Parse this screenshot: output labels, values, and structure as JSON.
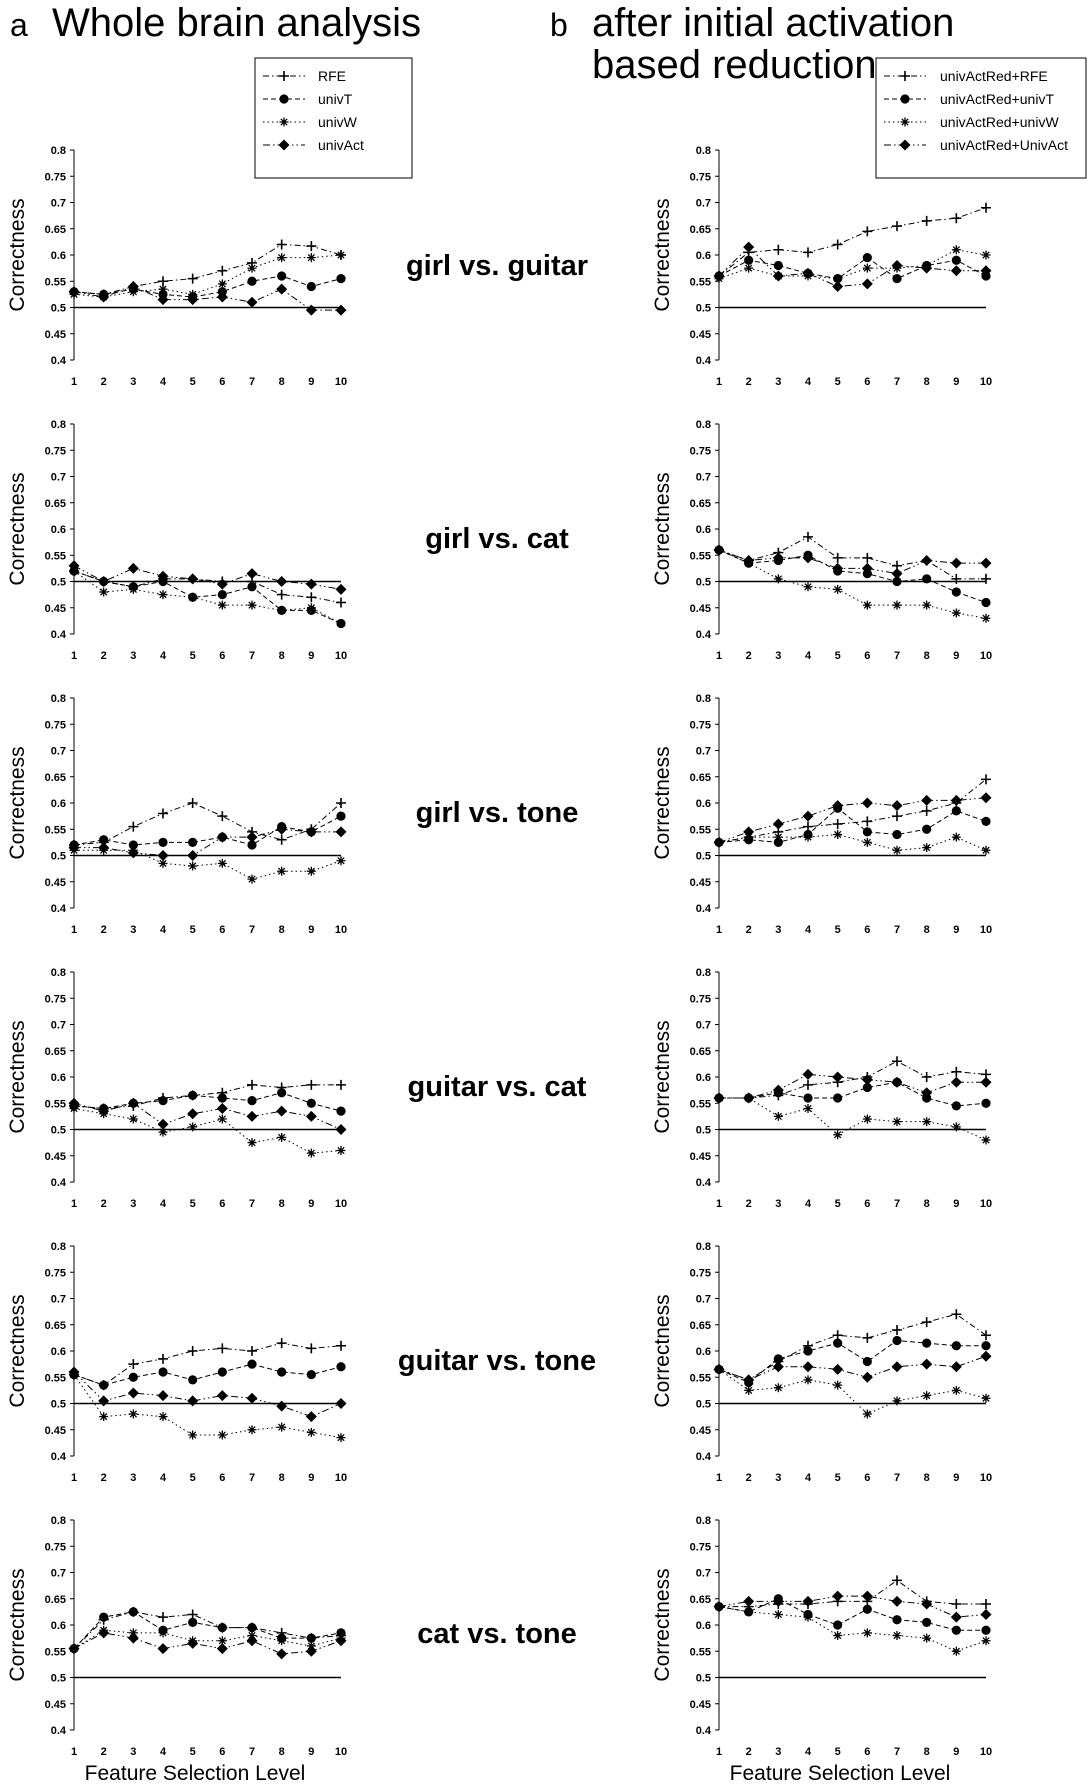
{
  "panels": {
    "a": {
      "letter": "a",
      "title": "Whole brain analysis"
    },
    "b": {
      "letter": "b",
      "title_line1": "after initial activation",
      "title_line2": "based reduction"
    }
  },
  "legend_a": [
    "RFE",
    "univT",
    "univW",
    "univAct"
  ],
  "legend_b": [
    "univActRed+RFE",
    "univActRed+univT",
    "univActRed+univW",
    "univActRed+UnivAct"
  ],
  "comparisons": [
    "girl vs. guitar",
    "girl vs. cat",
    "girl vs. tone",
    "guitar vs. cat",
    "guitar vs. tone",
    "cat vs. tone"
  ],
  "ylabel": "Correctness",
  "xlabel": "Feature Selection Level",
  "yticks": [
    "0.4",
    "0.45",
    "0.5",
    "0.55",
    "0.6",
    "0.65",
    "0.7",
    "0.75",
    "0.8"
  ],
  "xticks": [
    "1",
    "2",
    "3",
    "4",
    "5",
    "6",
    "7",
    "8",
    "9",
    "10"
  ],
  "chart_data": [
    {
      "type": "line",
      "panel": "a",
      "title": "girl vs. guitar",
      "ylim": [
        0.4,
        0.8
      ],
      "baseline": 0.5,
      "x": [
        1,
        2,
        3,
        4,
        5,
        6,
        7,
        8,
        9,
        10
      ],
      "series": [
        {
          "name": "RFE",
          "marker": "plus",
          "values": [
            0.53,
            0.525,
            0.54,
            0.55,
            0.555,
            0.57,
            0.585,
            0.62,
            0.617,
            0.6
          ]
        },
        {
          "name": "univT",
          "marker": "circle",
          "values": [
            0.53,
            0.525,
            0.535,
            0.525,
            0.52,
            0.53,
            0.55,
            0.56,
            0.54,
            0.555
          ]
        },
        {
          "name": "univW",
          "marker": "star",
          "values": [
            0.525,
            0.52,
            0.53,
            0.535,
            0.525,
            0.545,
            0.575,
            0.595,
            0.595,
            0.6
          ]
        },
        {
          "name": "univAct",
          "marker": "diamond",
          "values": [
            0.53,
            0.52,
            0.54,
            0.515,
            0.515,
            0.52,
            0.51,
            0.535,
            0.495,
            0.495
          ]
        }
      ]
    },
    {
      "type": "line",
      "panel": "b",
      "title": "girl vs. guitar",
      "ylim": [
        0.4,
        0.8
      ],
      "baseline": 0.5,
      "x": [
        1,
        2,
        3,
        4,
        5,
        6,
        7,
        8,
        9,
        10
      ],
      "series": [
        {
          "name": "univActRed+RFE",
          "marker": "plus",
          "values": [
            0.56,
            0.605,
            0.61,
            0.605,
            0.62,
            0.645,
            0.655,
            0.665,
            0.67,
            0.69
          ]
        },
        {
          "name": "univActRed+univT",
          "marker": "circle",
          "values": [
            0.56,
            0.59,
            0.58,
            0.565,
            0.555,
            0.595,
            0.555,
            0.58,
            0.59,
            0.56
          ]
        },
        {
          "name": "univActRed+univW",
          "marker": "star",
          "values": [
            0.555,
            0.575,
            0.56,
            0.56,
            0.555,
            0.575,
            0.575,
            0.58,
            0.61,
            0.6
          ]
        },
        {
          "name": "univActRed+UnivAct",
          "marker": "diamond",
          "values": [
            0.56,
            0.615,
            0.56,
            0.565,
            0.54,
            0.545,
            0.58,
            0.575,
            0.57,
            0.57
          ]
        }
      ]
    },
    {
      "type": "line",
      "panel": "a",
      "title": "girl vs. cat",
      "ylim": [
        0.4,
        0.8
      ],
      "baseline": 0.5,
      "x": [
        1,
        2,
        3,
        4,
        5,
        6,
        7,
        8,
        9,
        10
      ],
      "series": [
        {
          "name": "RFE",
          "marker": "plus",
          "values": [
            0.52,
            0.5,
            0.49,
            0.505,
            0.505,
            0.5,
            0.5,
            0.475,
            0.47,
            0.46
          ]
        },
        {
          "name": "univT",
          "marker": "circle",
          "values": [
            0.52,
            0.5,
            0.49,
            0.5,
            0.47,
            0.475,
            0.49,
            0.445,
            0.445,
            0.42
          ]
        },
        {
          "name": "univW",
          "marker": "star",
          "values": [
            0.52,
            0.48,
            0.485,
            0.475,
            0.47,
            0.455,
            0.455,
            0.445,
            0.45,
            0.42
          ]
        },
        {
          "name": "univAct",
          "marker": "diamond",
          "values": [
            0.53,
            0.5,
            0.525,
            0.51,
            0.505,
            0.495,
            0.515,
            0.5,
            0.495,
            0.485
          ]
        }
      ]
    },
    {
      "type": "line",
      "panel": "b",
      "title": "girl vs. cat",
      "ylim": [
        0.4,
        0.8
      ],
      "baseline": 0.5,
      "x": [
        1,
        2,
        3,
        4,
        5,
        6,
        7,
        8,
        9,
        10
      ],
      "series": [
        {
          "name": "univActRed+RFE",
          "marker": "plus",
          "values": [
            0.56,
            0.54,
            0.555,
            0.585,
            0.545,
            0.545,
            0.53,
            0.54,
            0.505,
            0.505
          ]
        },
        {
          "name": "univActRed+univT",
          "marker": "circle",
          "values": [
            0.56,
            0.535,
            0.54,
            0.55,
            0.52,
            0.515,
            0.5,
            0.505,
            0.48,
            0.46
          ]
        },
        {
          "name": "univActRed+univW",
          "marker": "star",
          "values": [
            0.56,
            0.535,
            0.505,
            0.49,
            0.485,
            0.455,
            0.455,
            0.455,
            0.44,
            0.43
          ]
        },
        {
          "name": "univActRed+UnivAct",
          "marker": "diamond",
          "values": [
            0.56,
            0.54,
            0.545,
            0.545,
            0.525,
            0.525,
            0.515,
            0.54,
            0.535,
            0.535
          ]
        }
      ]
    },
    {
      "type": "line",
      "panel": "a",
      "title": "girl vs. tone",
      "ylim": [
        0.4,
        0.8
      ],
      "baseline": 0.5,
      "x": [
        1,
        2,
        3,
        4,
        5,
        6,
        7,
        8,
        9,
        10
      ],
      "series": [
        {
          "name": "RFE",
          "marker": "plus",
          "values": [
            0.52,
            0.525,
            0.555,
            0.58,
            0.6,
            0.575,
            0.545,
            0.53,
            0.55,
            0.6
          ]
        },
        {
          "name": "univT",
          "marker": "circle",
          "values": [
            0.52,
            0.53,
            0.52,
            0.525,
            0.525,
            0.535,
            0.52,
            0.555,
            0.545,
            0.575
          ]
        },
        {
          "name": "univW",
          "marker": "star",
          "values": [
            0.51,
            0.51,
            0.51,
            0.485,
            0.48,
            0.485,
            0.455,
            0.47,
            0.47,
            0.49
          ]
        },
        {
          "name": "univAct",
          "marker": "diamond",
          "values": [
            0.515,
            0.515,
            0.505,
            0.5,
            0.5,
            0.535,
            0.535,
            0.55,
            0.545,
            0.545
          ]
        }
      ]
    },
    {
      "type": "line",
      "panel": "b",
      "title": "girl vs. tone",
      "ylim": [
        0.4,
        0.8
      ],
      "baseline": 0.5,
      "x": [
        1,
        2,
        3,
        4,
        5,
        6,
        7,
        8,
        9,
        10
      ],
      "series": [
        {
          "name": "univActRed+RFE",
          "marker": "plus",
          "values": [
            0.525,
            0.535,
            0.545,
            0.555,
            0.56,
            0.565,
            0.575,
            0.585,
            0.6,
            0.645
          ]
        },
        {
          "name": "univActRed+univT",
          "marker": "circle",
          "values": [
            0.525,
            0.53,
            0.525,
            0.54,
            0.59,
            0.545,
            0.54,
            0.55,
            0.585,
            0.565
          ]
        },
        {
          "name": "univActRed+univW",
          "marker": "star",
          "values": [
            0.525,
            0.535,
            0.535,
            0.535,
            0.54,
            0.525,
            0.51,
            0.515,
            0.535,
            0.51
          ]
        },
        {
          "name": "univActRed+UnivAct",
          "marker": "diamond",
          "values": [
            0.525,
            0.545,
            0.56,
            0.575,
            0.595,
            0.6,
            0.595,
            0.605,
            0.605,
            0.61
          ]
        }
      ]
    },
    {
      "type": "line",
      "panel": "a",
      "title": "guitar vs. cat",
      "ylim": [
        0.4,
        0.8
      ],
      "baseline": 0.5,
      "x": [
        1,
        2,
        3,
        4,
        5,
        6,
        7,
        8,
        9,
        10
      ],
      "series": [
        {
          "name": "RFE",
          "marker": "plus",
          "values": [
            0.545,
            0.54,
            0.545,
            0.56,
            0.565,
            0.57,
            0.585,
            0.58,
            0.585,
            0.585
          ]
        },
        {
          "name": "univT",
          "marker": "circle",
          "values": [
            0.545,
            0.54,
            0.55,
            0.555,
            0.565,
            0.56,
            0.555,
            0.57,
            0.55,
            0.535
          ]
        },
        {
          "name": "univW",
          "marker": "star",
          "values": [
            0.54,
            0.53,
            0.52,
            0.495,
            0.505,
            0.52,
            0.475,
            0.485,
            0.455,
            0.46
          ]
        },
        {
          "name": "univAct",
          "marker": "diamond",
          "values": [
            0.55,
            0.535,
            0.55,
            0.51,
            0.53,
            0.54,
            0.525,
            0.535,
            0.525,
            0.5
          ]
        }
      ]
    },
    {
      "type": "line",
      "panel": "b",
      "title": "guitar vs. cat",
      "ylim": [
        0.4,
        0.8
      ],
      "baseline": 0.5,
      "x": [
        1,
        2,
        3,
        4,
        5,
        6,
        7,
        8,
        9,
        10
      ],
      "series": [
        {
          "name": "univActRed+RFE",
          "marker": "plus",
          "values": [
            0.56,
            0.56,
            0.565,
            0.585,
            0.59,
            0.6,
            0.63,
            0.6,
            0.61,
            0.605
          ]
        },
        {
          "name": "univActRed+univT",
          "marker": "circle",
          "values": [
            0.56,
            0.56,
            0.57,
            0.56,
            0.56,
            0.58,
            0.59,
            0.56,
            0.545,
            0.55
          ]
        },
        {
          "name": "univActRed+univW",
          "marker": "star",
          "values": [
            0.56,
            0.56,
            0.525,
            0.54,
            0.49,
            0.52,
            0.515,
            0.515,
            0.505,
            0.48
          ]
        },
        {
          "name": "univActRed+UnivAct",
          "marker": "diamond",
          "values": [
            0.56,
            0.56,
            0.575,
            0.605,
            0.6,
            0.595,
            0.59,
            0.57,
            0.59,
            0.59
          ]
        }
      ]
    },
    {
      "type": "line",
      "panel": "a",
      "title": "guitar vs. tone",
      "ylim": [
        0.4,
        0.8
      ],
      "baseline": 0.5,
      "x": [
        1,
        2,
        3,
        4,
        5,
        6,
        7,
        8,
        9,
        10
      ],
      "series": [
        {
          "name": "RFE",
          "marker": "plus",
          "values": [
            0.555,
            0.535,
            0.575,
            0.585,
            0.6,
            0.605,
            0.6,
            0.615,
            0.605,
            0.61
          ]
        },
        {
          "name": "univT",
          "marker": "circle",
          "values": [
            0.555,
            0.535,
            0.55,
            0.56,
            0.545,
            0.56,
            0.575,
            0.56,
            0.555,
            0.57
          ]
        },
        {
          "name": "univW",
          "marker": "star",
          "values": [
            0.555,
            0.475,
            0.48,
            0.475,
            0.44,
            0.44,
            0.45,
            0.455,
            0.445,
            0.435
          ]
        },
        {
          "name": "univAct",
          "marker": "diamond",
          "values": [
            0.56,
            0.505,
            0.52,
            0.515,
            0.505,
            0.515,
            0.51,
            0.495,
            0.475,
            0.5
          ]
        }
      ]
    },
    {
      "type": "line",
      "panel": "b",
      "title": "guitar vs. tone",
      "ylim": [
        0.4,
        0.8
      ],
      "baseline": 0.5,
      "x": [
        1,
        2,
        3,
        4,
        5,
        6,
        7,
        8,
        9,
        10
      ],
      "series": [
        {
          "name": "univActRed+RFE",
          "marker": "plus",
          "values": [
            0.565,
            0.545,
            0.58,
            0.61,
            0.63,
            0.625,
            0.64,
            0.655,
            0.67,
            0.63
          ]
        },
        {
          "name": "univActRed+univT",
          "marker": "circle",
          "values": [
            0.565,
            0.54,
            0.585,
            0.6,
            0.615,
            0.58,
            0.62,
            0.615,
            0.61,
            0.61
          ]
        },
        {
          "name": "univActRed+univW",
          "marker": "star",
          "values": [
            0.565,
            0.525,
            0.53,
            0.545,
            0.535,
            0.48,
            0.505,
            0.515,
            0.525,
            0.51
          ]
        },
        {
          "name": "univActRed+UnivAct",
          "marker": "diamond",
          "values": [
            0.565,
            0.545,
            0.57,
            0.57,
            0.565,
            0.55,
            0.57,
            0.575,
            0.57,
            0.59
          ]
        }
      ]
    },
    {
      "type": "line",
      "panel": "a",
      "title": "cat vs. tone",
      "ylim": [
        0.4,
        0.8
      ],
      "baseline": 0.5,
      "x": [
        1,
        2,
        3,
        4,
        5,
        6,
        7,
        8,
        9,
        10
      ],
      "series": [
        {
          "name": "RFE",
          "marker": "plus",
          "values": [
            0.555,
            0.61,
            0.625,
            0.615,
            0.62,
            0.595,
            0.595,
            0.585,
            0.575,
            0.58
          ]
        },
        {
          "name": "univT",
          "marker": "circle",
          "values": [
            0.555,
            0.615,
            0.625,
            0.59,
            0.605,
            0.595,
            0.595,
            0.575,
            0.575,
            0.585
          ]
        },
        {
          "name": "univW",
          "marker": "star",
          "values": [
            0.555,
            0.59,
            0.585,
            0.585,
            0.57,
            0.57,
            0.58,
            0.57,
            0.56,
            0.575
          ]
        },
        {
          "name": "univAct",
          "marker": "diamond",
          "values": [
            0.555,
            0.585,
            0.575,
            0.555,
            0.565,
            0.555,
            0.57,
            0.545,
            0.55,
            0.57
          ]
        }
      ]
    },
    {
      "type": "line",
      "panel": "b",
      "title": "cat vs. tone",
      "ylim": [
        0.4,
        0.8
      ],
      "baseline": 0.5,
      "x": [
        1,
        2,
        3,
        4,
        5,
        6,
        7,
        8,
        9,
        10
      ],
      "series": [
        {
          "name": "univActRed+RFE",
          "marker": "plus",
          "values": [
            0.635,
            0.635,
            0.64,
            0.64,
            0.645,
            0.645,
            0.685,
            0.645,
            0.64,
            0.64
          ]
        },
        {
          "name": "univActRed+univT",
          "marker": "circle",
          "values": [
            0.635,
            0.625,
            0.65,
            0.62,
            0.6,
            0.63,
            0.61,
            0.605,
            0.59,
            0.59
          ]
        },
        {
          "name": "univActRed+univW",
          "marker": "star",
          "values": [
            0.635,
            0.625,
            0.62,
            0.615,
            0.58,
            0.585,
            0.58,
            0.575,
            0.55,
            0.57
          ]
        },
        {
          "name": "univActRed+UnivAct",
          "marker": "diamond",
          "values": [
            0.635,
            0.645,
            0.645,
            0.645,
            0.655,
            0.655,
            0.645,
            0.64,
            0.615,
            0.62
          ]
        }
      ]
    }
  ]
}
